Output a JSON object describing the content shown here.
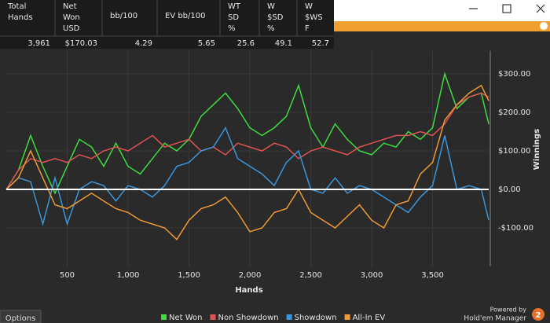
{
  "stats_table": {
    "headers": [
      [
        "Total",
        "Hands"
      ],
      [
        "Net",
        "Won",
        "USD"
      ],
      [
        "bb/100"
      ],
      [
        "EV bb/100"
      ],
      [
        "WT",
        "SD",
        "%"
      ],
      [
        "W",
        "$SD",
        "%"
      ],
      [
        "W",
        "$WS",
        "F"
      ]
    ],
    "row": [
      "3,961",
      "$170.03",
      "4.29",
      "5.65",
      "25.6",
      "49.1",
      "52.7"
    ]
  },
  "chart_data": {
    "type": "line",
    "x_label": "Hands",
    "y_label": "Winnings",
    "x": [
      0,
      100,
      200,
      300,
      400,
      500,
      600,
      700,
      800,
      900,
      1000,
      1100,
      1200,
      1300,
      1400,
      1500,
      1600,
      1700,
      1800,
      1900,
      2000,
      2100,
      2200,
      2300,
      2400,
      2500,
      2600,
      2700,
      2800,
      2900,
      3000,
      3100,
      3200,
      3300,
      3400,
      3500,
      3600,
      3700,
      3800,
      3900,
      3961
    ],
    "series": [
      {
        "name": "Net Won",
        "color": "#3fdc3f",
        "values": [
          0,
          50,
          140,
          60,
          -10,
          60,
          130,
          110,
          60,
          120,
          60,
          40,
          80,
          120,
          100,
          130,
          190,
          220,
          250,
          210,
          160,
          140,
          160,
          190,
          270,
          160,
          110,
          170,
          130,
          100,
          90,
          120,
          110,
          150,
          130,
          160,
          300,
          210,
          240,
          250,
          170
        ]
      },
      {
        "name": "Non Showdown",
        "color": "#e05252",
        "values": [
          0,
          50,
          80,
          70,
          80,
          70,
          90,
          80,
          100,
          110,
          100,
          120,
          140,
          110,
          120,
          130,
          100,
          110,
          90,
          120,
          110,
          100,
          120,
          110,
          80,
          100,
          110,
          100,
          90,
          110,
          120,
          130,
          140,
          140,
          150,
          140,
          170,
          220,
          240,
          250,
          240
        ]
      },
      {
        "name": "Showdown",
        "color": "#3a96dc",
        "values": [
          0,
          30,
          20,
          -90,
          30,
          -90,
          0,
          20,
          10,
          -30,
          10,
          0,
          -20,
          10,
          60,
          70,
          100,
          110,
          160,
          80,
          60,
          40,
          10,
          70,
          100,
          0,
          -10,
          30,
          -10,
          10,
          0,
          -20,
          -40,
          -60,
          -20,
          10,
          140,
          0,
          10,
          0,
          -80
        ]
      },
      {
        "name": "All-In EV",
        "color": "#ee9933",
        "values": [
          0,
          30,
          100,
          30,
          -40,
          -50,
          -30,
          -10,
          -30,
          -50,
          -60,
          -80,
          -90,
          -100,
          -130,
          -80,
          -50,
          -40,
          -20,
          -60,
          -110,
          -100,
          -60,
          -50,
          0,
          -60,
          -80,
          -100,
          -70,
          -40,
          -80,
          -100,
          -40,
          -30,
          40,
          70,
          180,
          220,
          250,
          270,
          230
        ]
      }
    ],
    "xlim": [
      0,
      3961
    ],
    "ylim": [
      -200,
      360
    ],
    "xticks": [
      500,
      {
        "value": 1000,
        "label": "1,000"
      },
      {
        "value": 1500,
        "label": "1,500"
      },
      {
        "value": 2000,
        "label": "2,000"
      },
      {
        "value": 2500,
        "label": "2,500"
      },
      {
        "value": 3000,
        "label": "3,000"
      },
      {
        "value": 3500,
        "label": "3,500"
      }
    ],
    "yticks": [
      {
        "value": -100,
        "label": "-$100.00"
      },
      {
        "value": 0,
        "label": "$0.00"
      },
      {
        "value": 100,
        "label": "$100.00"
      },
      {
        "value": 200,
        "label": "$200.00"
      },
      {
        "value": 300,
        "label": "$300.00"
      }
    ],
    "grid": true
  },
  "footer": {
    "options": "Options",
    "powered_by": "Powered by",
    "brand": "Hold'em Manager",
    "badge": "2"
  }
}
